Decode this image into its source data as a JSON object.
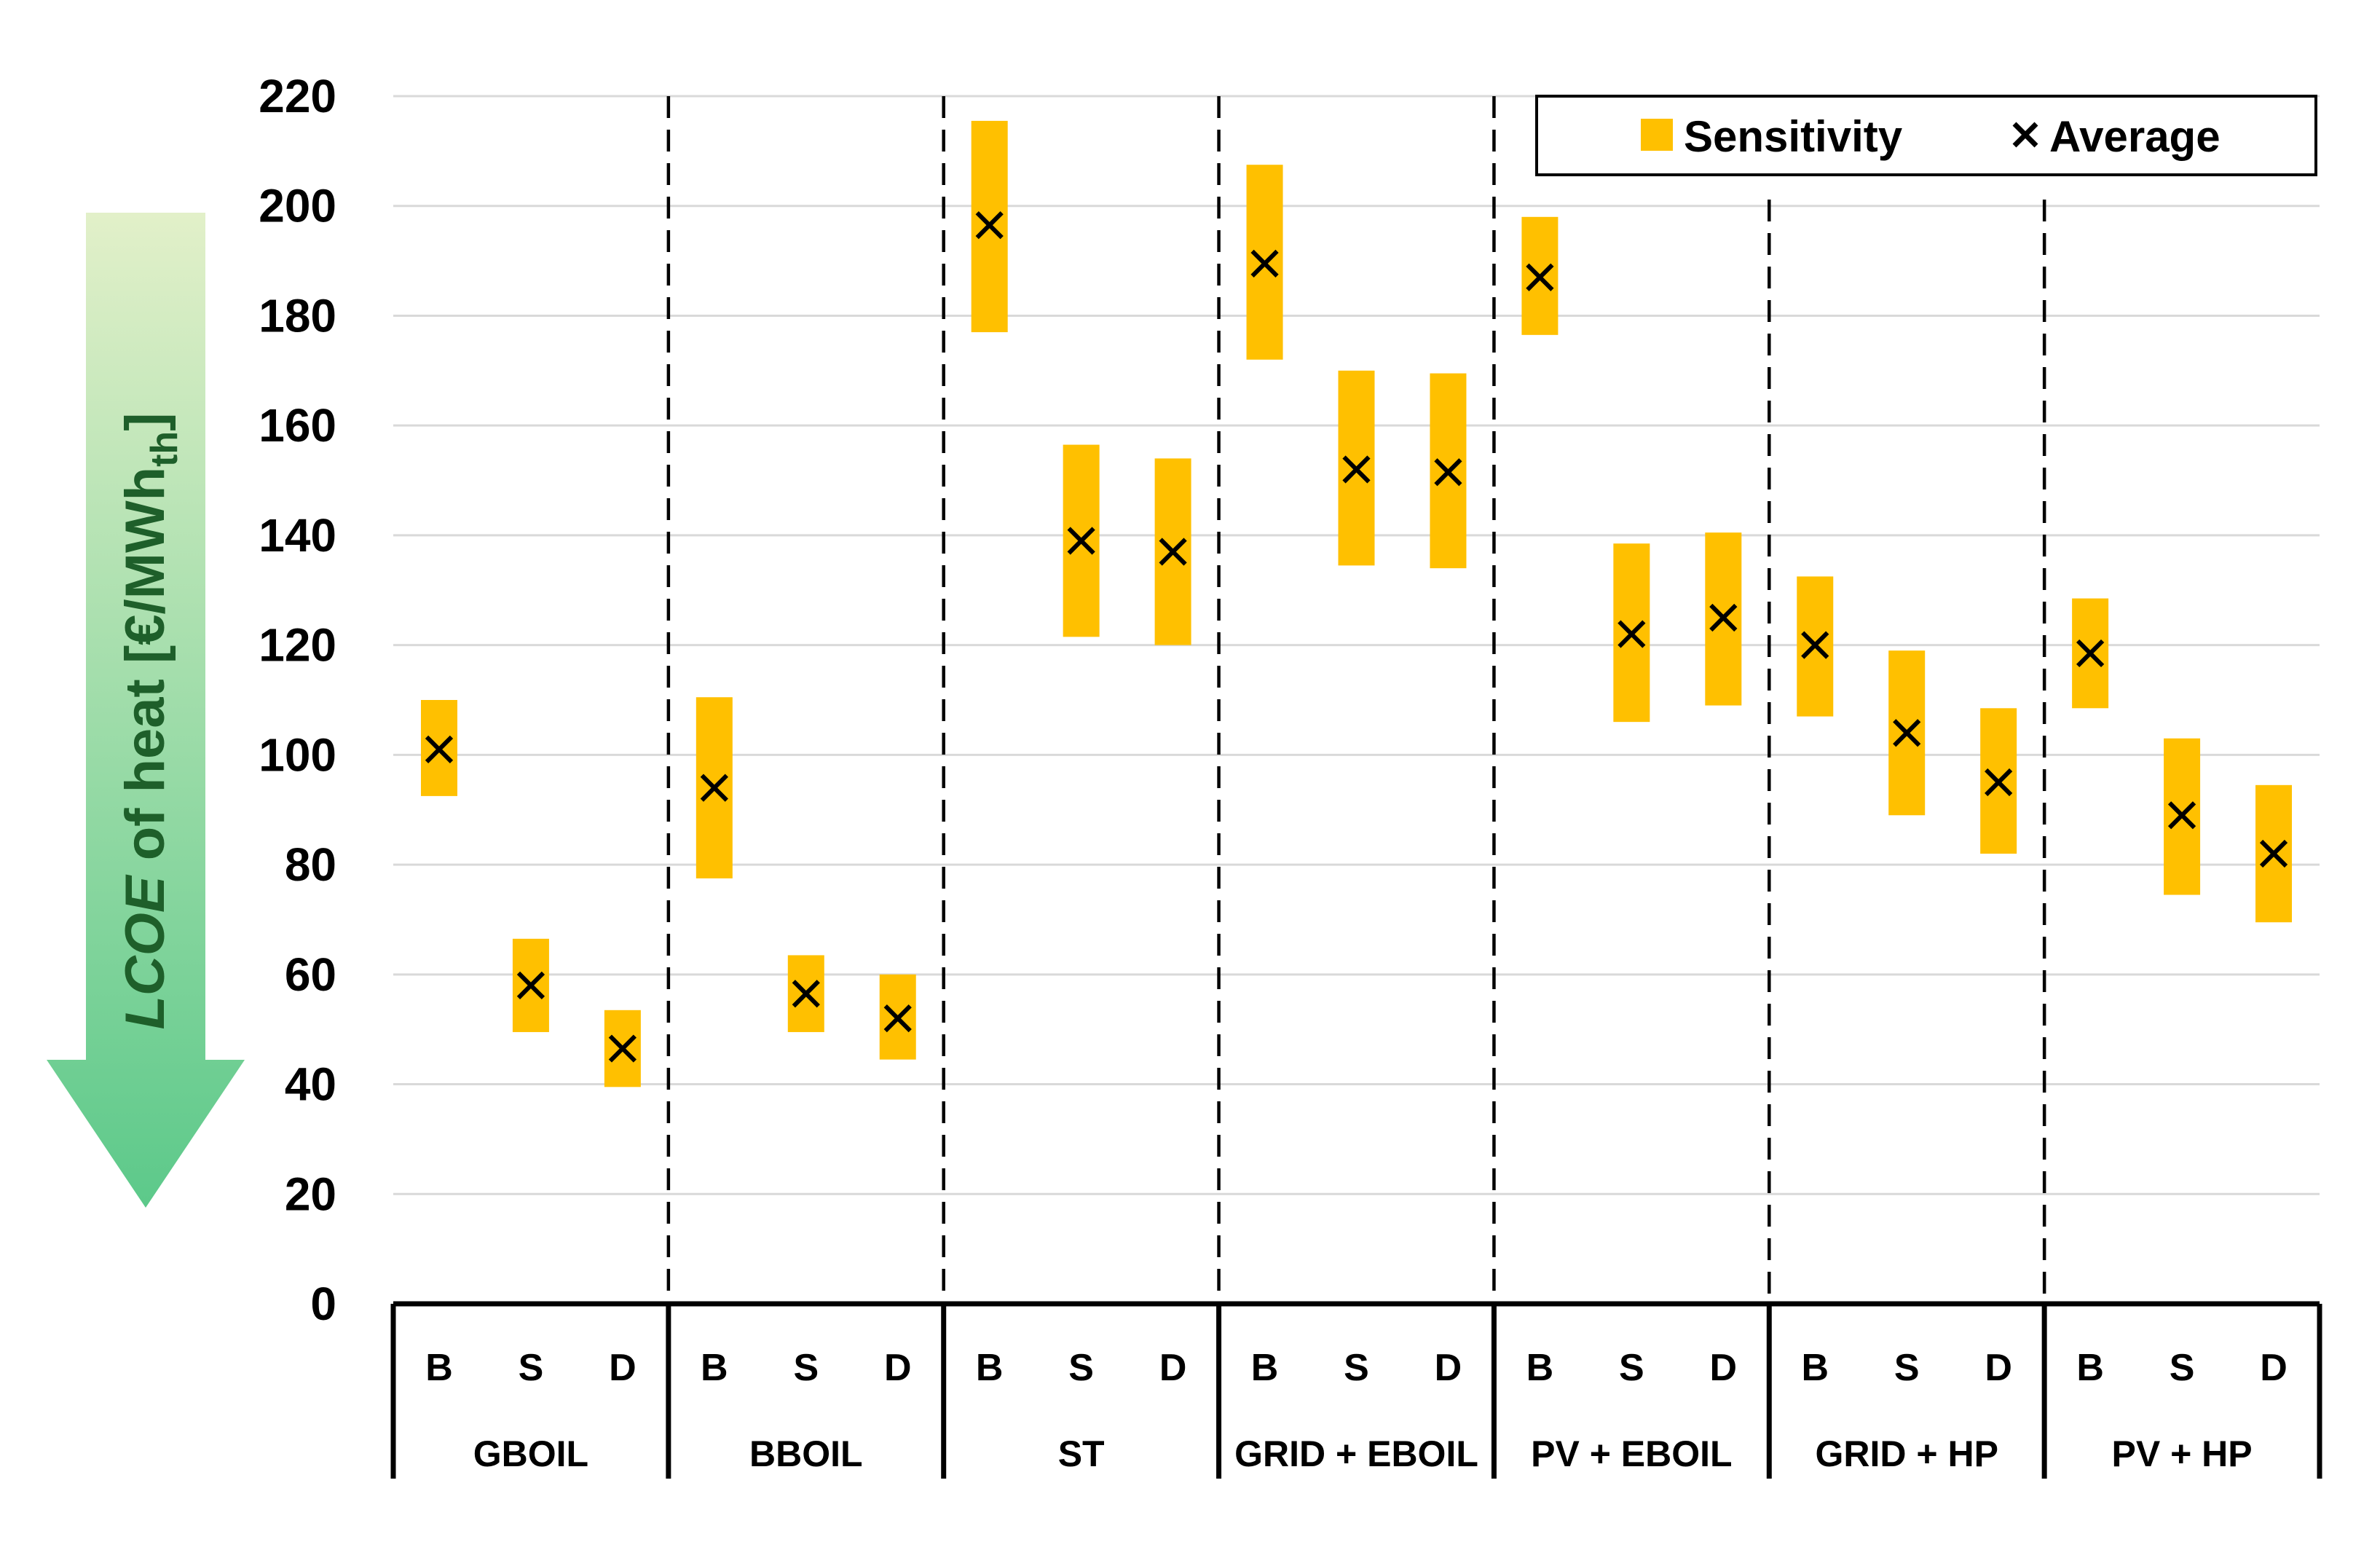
{
  "chart_data": {
    "type": "range",
    "ylabel": {
      "italic": "LCOE",
      "text": " of heat [€/MWh",
      "sub": "th",
      "close": "]"
    },
    "ylim": [
      0,
      220
    ],
    "yticks": [
      0,
      20,
      40,
      60,
      80,
      100,
      120,
      140,
      160,
      180,
      200,
      220
    ],
    "grid": true,
    "legend": {
      "position": "top-right",
      "entries": [
        "Sensitivity",
        "Average"
      ]
    },
    "colors": {
      "sensitivity": "#FFC000",
      "average": "#000000",
      "gradient_top": "#e2f0c9",
      "gradient_bottom": "#5cc98a",
      "ylabel": "#1e5f2a"
    },
    "groups": [
      {
        "name": "GBOIL",
        "items": [
          {
            "cat": "B",
            "low": 92.5,
            "high": 110,
            "avg": 101
          },
          {
            "cat": "S",
            "low": 49.5,
            "high": 66.5,
            "avg": 58
          },
          {
            "cat": "D",
            "low": 39.5,
            "high": 53.5,
            "avg": 46.5
          }
        ]
      },
      {
        "name": "BBOIL",
        "items": [
          {
            "cat": "B",
            "low": 77.5,
            "high": 110.5,
            "avg": 94
          },
          {
            "cat": "S",
            "low": 49.5,
            "high": 63.5,
            "avg": 56.5
          },
          {
            "cat": "D",
            "low": 44.5,
            "high": 60,
            "avg": 52
          }
        ]
      },
      {
        "name": "ST",
        "items": [
          {
            "cat": "B",
            "low": 177,
            "high": 215.5,
            "avg": 196.5
          },
          {
            "cat": "S",
            "low": 121.5,
            "high": 156.5,
            "avg": 139
          },
          {
            "cat": "D",
            "low": 120,
            "high": 154,
            "avg": 137
          }
        ]
      },
      {
        "name": "GRID + EBOIL",
        "items": [
          {
            "cat": "B",
            "low": 172,
            "high": 207.5,
            "avg": 189.5
          },
          {
            "cat": "S",
            "low": 134.5,
            "high": 170,
            "avg": 152
          },
          {
            "cat": "D",
            "low": 134,
            "high": 169.5,
            "avg": 151.5
          }
        ]
      },
      {
        "name": "PV + EBOIL",
        "items": [
          {
            "cat": "B",
            "low": 176.5,
            "high": 198,
            "avg": 187
          },
          {
            "cat": "S",
            "low": 106,
            "high": 138.5,
            "avg": 122
          },
          {
            "cat": "D",
            "low": 109,
            "high": 140.5,
            "avg": 125
          }
        ]
      },
      {
        "name": "GRID + HP",
        "items": [
          {
            "cat": "B",
            "low": 107,
            "high": 132.5,
            "avg": 120
          },
          {
            "cat": "S",
            "low": 89,
            "high": 119,
            "avg": 104
          },
          {
            "cat": "D",
            "low": 82,
            "high": 108.5,
            "avg": 95
          }
        ]
      },
      {
        "name": "PV + HP",
        "items": [
          {
            "cat": "B",
            "low": 108.5,
            "high": 128.5,
            "avg": 118.5
          },
          {
            "cat": "S",
            "low": 74.5,
            "high": 103,
            "avg": 89
          },
          {
            "cat": "D",
            "low": 69.5,
            "high": 94.5,
            "avg": 82
          }
        ]
      }
    ]
  }
}
